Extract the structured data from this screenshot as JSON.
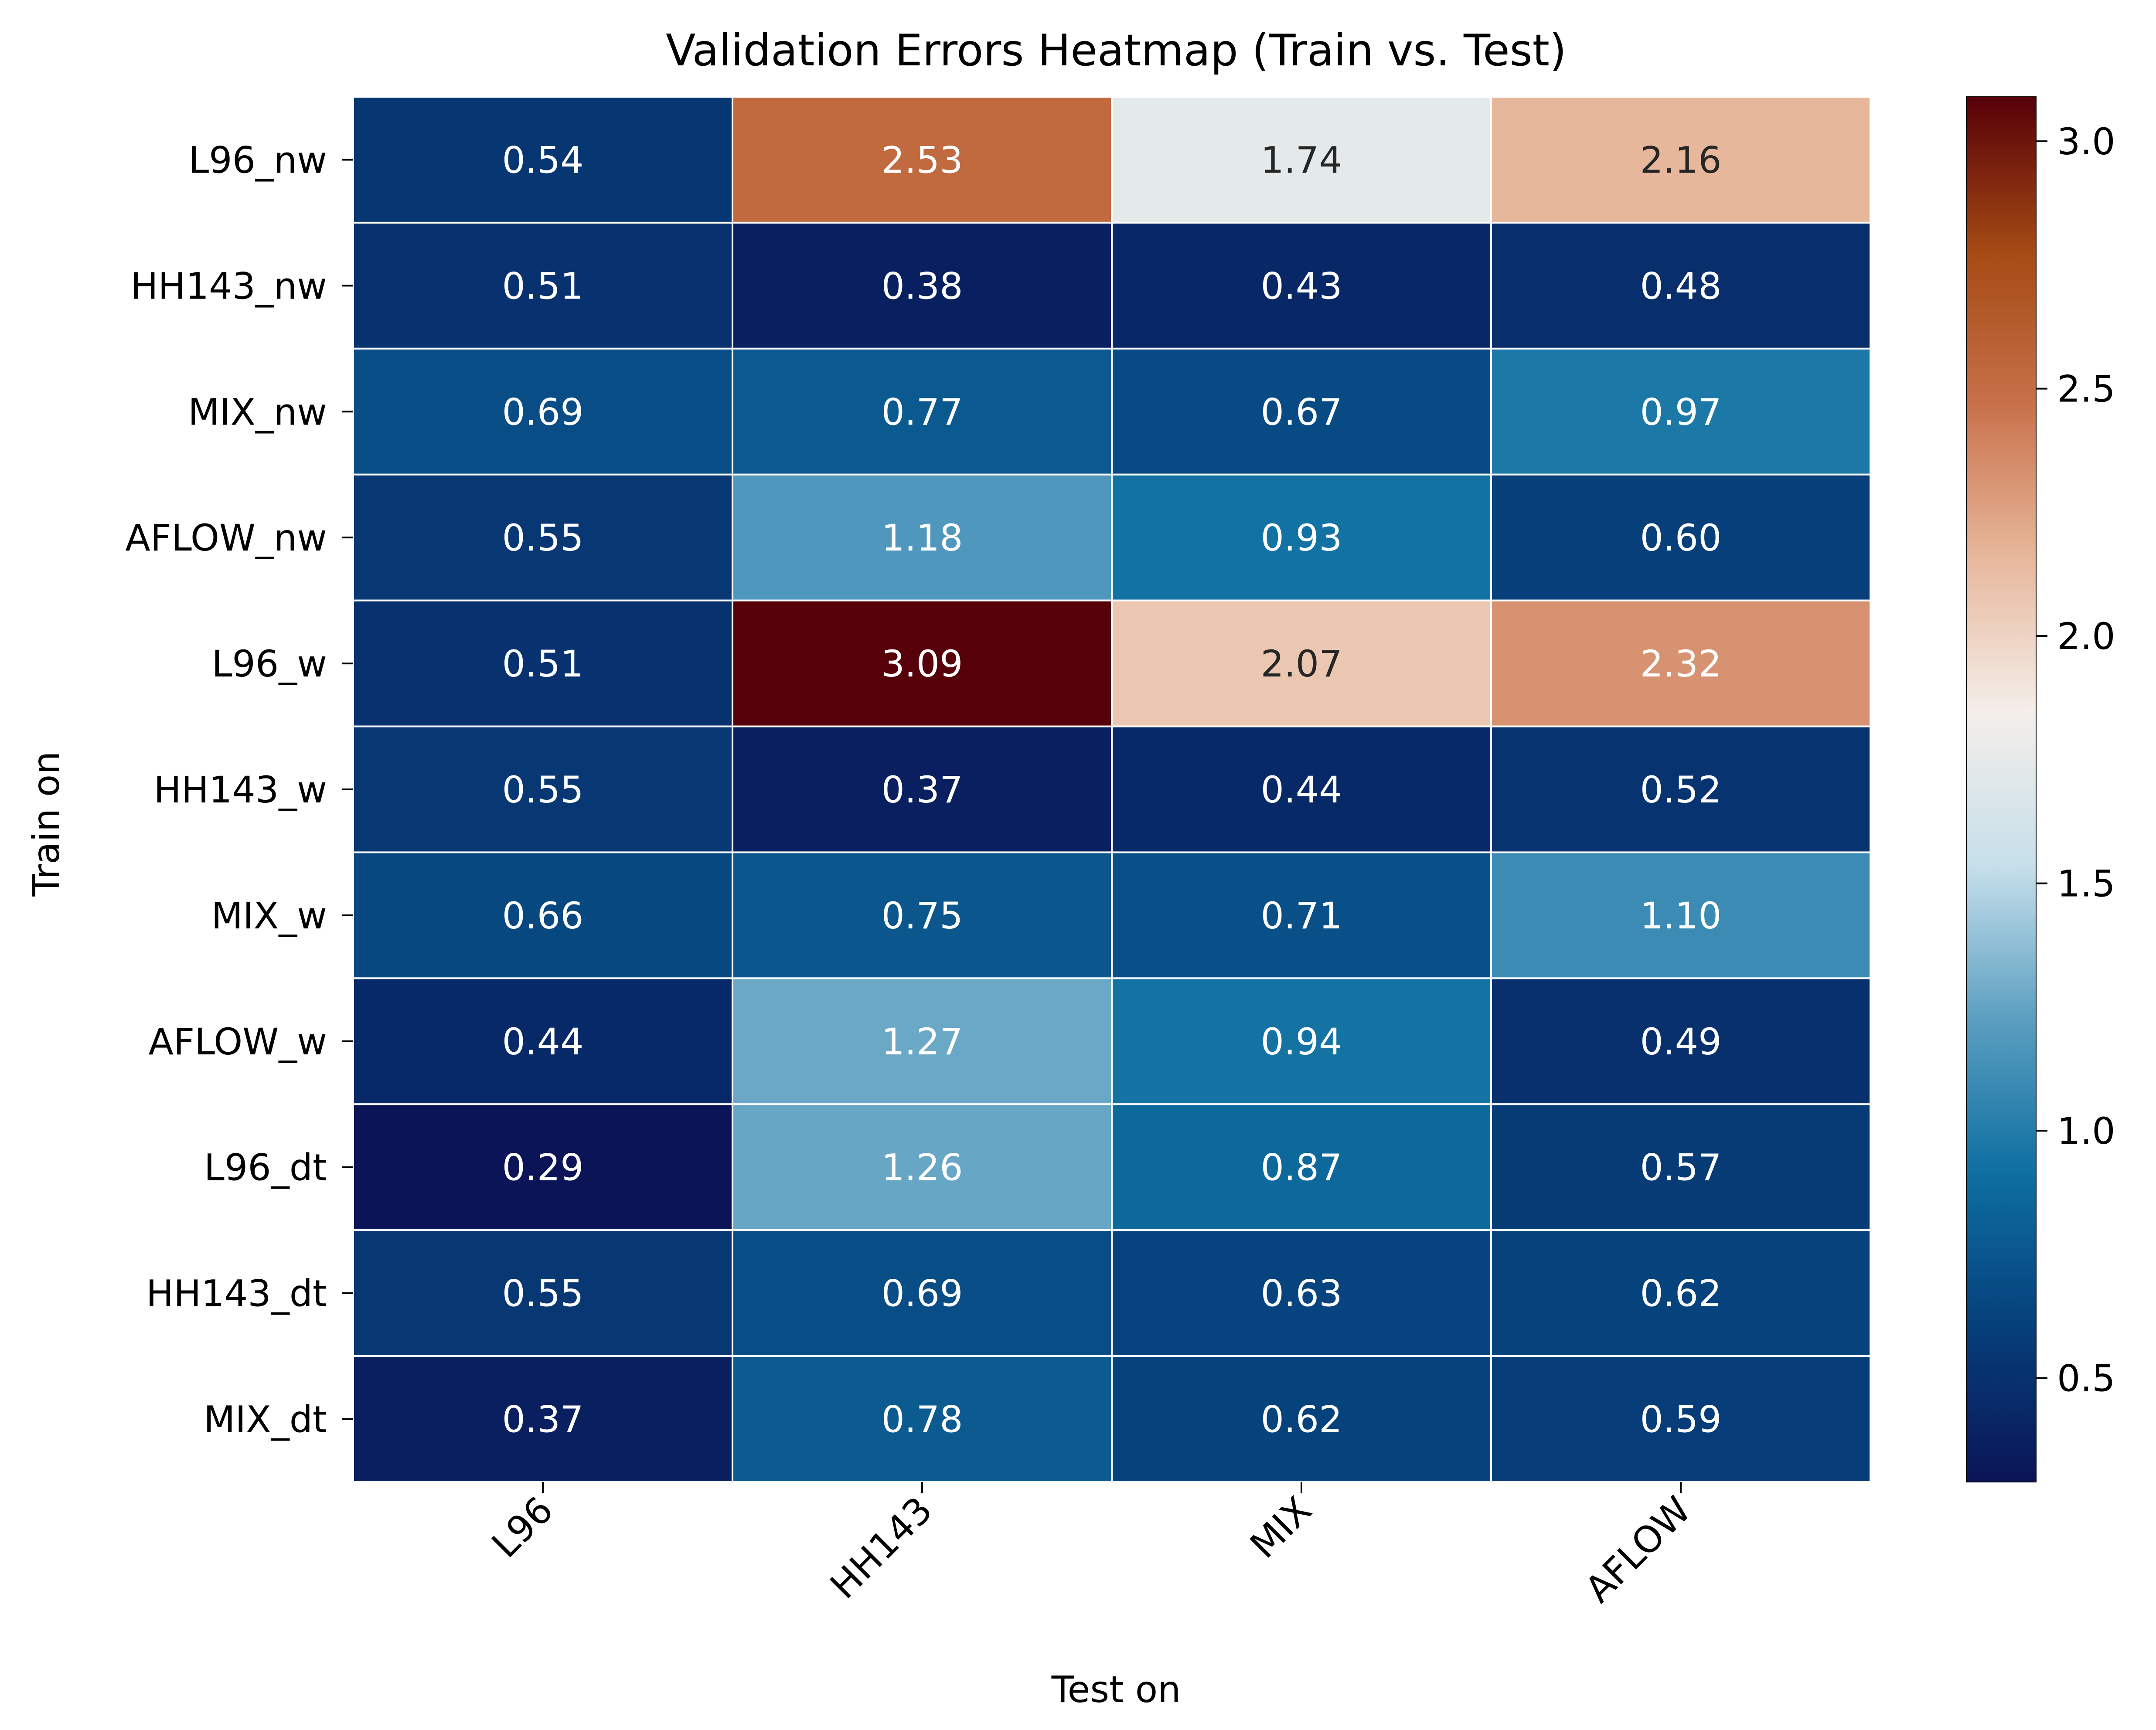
{
  "chart_data": {
    "type": "heatmap",
    "title": "Validation Errors Heatmap (Train vs. Test)",
    "xlabel": "Test on",
    "ylabel": "Train on",
    "columns": [
      "L96",
      "HH143",
      "MIX",
      "AFLOW"
    ],
    "rows": [
      "L96_nw",
      "HH143_nw",
      "MIX_nw",
      "AFLOW_nw",
      "L96_w",
      "HH143_w",
      "MIX_w",
      "AFLOW_w",
      "L96_dt",
      "HH143_dt",
      "MIX_dt"
    ],
    "values": [
      [
        0.54,
        2.53,
        1.74,
        2.16
      ],
      [
        0.51,
        0.38,
        0.43,
        0.48
      ],
      [
        0.69,
        0.77,
        0.67,
        0.97
      ],
      [
        0.55,
        1.18,
        0.93,
        0.6
      ],
      [
        0.51,
        3.09,
        2.07,
        2.32
      ],
      [
        0.55,
        0.37,
        0.44,
        0.52
      ],
      [
        0.66,
        0.75,
        0.71,
        1.1
      ],
      [
        0.44,
        1.27,
        0.94,
        0.49
      ],
      [
        0.29,
        1.26,
        0.87,
        0.57
      ],
      [
        0.55,
        0.69,
        0.63,
        0.62
      ],
      [
        0.37,
        0.78,
        0.62,
        0.59
      ]
    ],
    "colorbar": {
      "vmin": 0.29,
      "vmax": 3.09,
      "ticks": [
        0.5,
        1.0,
        1.5,
        2.0,
        2.5,
        3.0
      ],
      "tick_labels": [
        "0.5",
        "1.0",
        "1.5",
        "2.0",
        "2.5",
        "3.0"
      ],
      "colormap": "RdBu_r-like (navy → light → dark red)",
      "stops": [
        "#0a1456",
        "#063f7a",
        "#0e6fa1",
        "#5a9ec0",
        "#c6dfea",
        "#f4eeea",
        "#e7b89c",
        "#c8714a",
        "#a44a14",
        "#560009"
      ]
    },
    "annotations": true,
    "text_colors": {
      "light": "#ffffff",
      "dark": "#262626"
    },
    "grid_line_color": "#ffffff"
  }
}
